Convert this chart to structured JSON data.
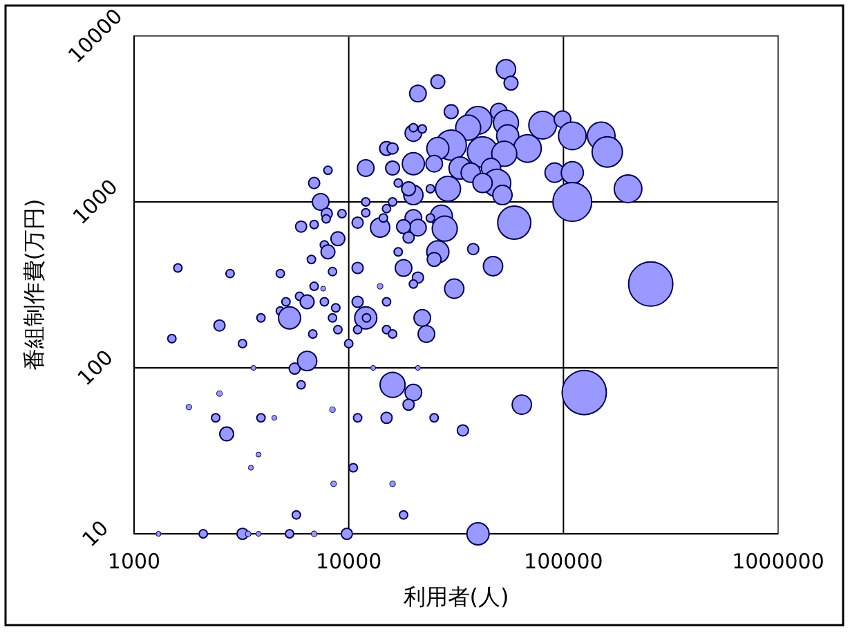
{
  "chart_data": {
    "type": "bubble",
    "xlabel": "利用者(人)",
    "ylabel": "番組制作費(万円)",
    "xlim": [
      1000,
      1000000
    ],
    "ylim": [
      10,
      10000
    ],
    "xticks": [
      1000,
      10000,
      100000,
      1000000
    ],
    "yticks": [
      10,
      100,
      1000,
      10000
    ],
    "log": "xy",
    "grid": true,
    "series": [
      {
        "color": "#9999ff",
        "x": [
          54000,
          57000,
          26000,
          21000,
          30000,
          40000,
          36000,
          50000,
          54000,
          55000,
          80000,
          99000,
          110000,
          150000,
          160000,
          68000,
          30000,
          26000,
          42000,
          53000,
          20000,
          20000,
          22000,
          15000,
          16000,
          12000,
          16000,
          20000,
          25000,
          33000,
          37000,
          46000,
          91000,
          110000,
          49000,
          42000,
          29000,
          52000,
          200000,
          110000,
          20000,
          19000,
          17000,
          24000,
          59000,
          27000,
          28000,
          20000,
          21000,
          18000,
          19000,
          24000,
          14000,
          11000,
          12000,
          16000,
          12000,
          15000,
          14500,
          26000,
          25000,
          38000,
          47000,
          17000,
          18000,
          21000,
          20000,
          11000,
          14000,
          31000,
          255000,
          8000,
          6900,
          7400,
          7900,
          7850,
          9300,
          6000,
          6900,
          8900,
          7700,
          8000,
          6700,
          8400,
          1600,
          2800,
          4800,
          6900,
          7600,
          5100,
          5900,
          6400,
          7700,
          8700,
          4800,
          5300,
          3900,
          2500,
          1500,
          3200,
          6800,
          8400,
          8900,
          11000,
          12000,
          12100,
          11000,
          10000,
          15000,
          15000,
          16000,
          22000,
          23000,
          3600,
          5600,
          6400,
          6000,
          2500,
          1800,
          2400,
          3900,
          4500,
          8400,
          2700,
          3800,
          3500,
          8500,
          10500,
          5700,
          2100,
          3200,
          3400,
          5300,
          6900,
          9800,
          1300,
          3800,
          40000,
          13000,
          21000,
          16000,
          20000,
          19000,
          15000,
          11000,
          25000,
          16000,
          18000,
          34000,
          64000,
          125000
        ],
        "values": [
          6300,
          5200,
          5300,
          4500,
          3500,
          3100,
          2800,
          3500,
          3000,
          2500,
          2900,
          3150,
          2500,
          2500,
          2000,
          2100,
          2200,
          2100,
          2000,
          1950,
          2600,
          2800,
          2750,
          2100,
          2100,
          1600,
          1600,
          1700,
          1700,
          1600,
          1500,
          1600,
          1500,
          1500,
          1300,
          1300,
          1200,
          1100,
          1200,
          1000,
          1100,
          1200,
          1300,
          1200,
          750,
          820,
          690,
          800,
          700,
          710,
          610,
          800,
          700,
          750,
          1000,
          1000,
          860,
          910,
          800,
          500,
          450,
          520,
          410,
          500,
          400,
          350,
          320,
          400,
          310,
          300,
          320,
          1550,
          1300,
          1000,
          850,
          790,
          850,
          710,
          730,
          600,
          550,
          500,
          450,
          380,
          400,
          370,
          370,
          310,
          300,
          250,
          270,
          250,
          250,
          230,
          220,
          200,
          200,
          180,
          150,
          140,
          160,
          200,
          170,
          250,
          200,
          200,
          170,
          140,
          250,
          170,
          160,
          200,
          160,
          100,
          99,
          110,
          79,
          70,
          58,
          50,
          50,
          50,
          56,
          40,
          30,
          25,
          20,
          25,
          13,
          10,
          10,
          10,
          10,
          10,
          10,
          10,
          10,
          10,
          100,
          100,
          79,
          71,
          60,
          50,
          50,
          50,
          20,
          13,
          42,
          60,
          71
        ],
        "sizes": [
          0.19,
          0.098,
          0.098,
          0.14,
          0.098,
          0.39,
          0.32,
          0.14,
          0.32,
          0.25,
          0.39,
          0.14,
          0.39,
          0.39,
          0.47,
          0.39,
          0.47,
          0.25,
          0.47,
          0.32,
          0.14,
          0.035,
          0.035,
          0.098,
          0.063,
          0.14,
          0.098,
          0.25,
          0.14,
          0.25,
          0.19,
          0.19,
          0.19,
          0.25,
          0.39,
          0.19,
          0.32,
          0.19,
          0.39,
          0.77,
          0.19,
          0.098,
          0.035,
          0.035,
          0.56,
          0.25,
          0.32,
          0.14,
          0.14,
          0.098,
          0.063,
          0.035,
          0.19,
          0.063,
          0.035,
          0.035,
          0.035,
          0.035,
          0.035,
          0.25,
          0.098,
          0.063,
          0.19,
          0.035,
          0.14,
          0.063,
          0.035,
          0.063,
          0.016,
          0.19,
          1,
          0.035,
          0.063,
          0.14,
          0.063,
          0.035,
          0.035,
          0.063,
          0.035,
          0.098,
          0.035,
          0.098,
          0.035,
          0.035,
          0.035,
          0.035,
          0.035,
          0.035,
          0.004,
          0.035,
          0.035,
          0.098,
          0.035,
          0.035,
          0.035,
          0.25,
          0.035,
          0.063,
          0.035,
          0.035,
          0.035,
          0.035,
          0.035,
          0.063,
          0.25,
          0.035,
          0.035,
          0.035,
          0.035,
          0.035,
          0.035,
          0.14,
          0.14,
          0.004,
          0.063,
          0.19,
          0.035,
          0.016,
          0.016,
          0.035,
          0.035,
          0.004,
          0.016,
          0.098,
          0.004,
          0.004,
          0.016,
          0.035,
          0.035,
          0.035,
          0.063,
          0.016,
          0.035,
          0.016,
          0.063,
          0.004,
          0.004,
          0.25,
          0.004,
          0.004,
          0.32,
          0.14,
          0.063,
          0.063,
          0.035,
          0.035,
          0.016,
          0.035,
          0.063,
          0.19,
          1
        ]
      }
    ]
  }
}
